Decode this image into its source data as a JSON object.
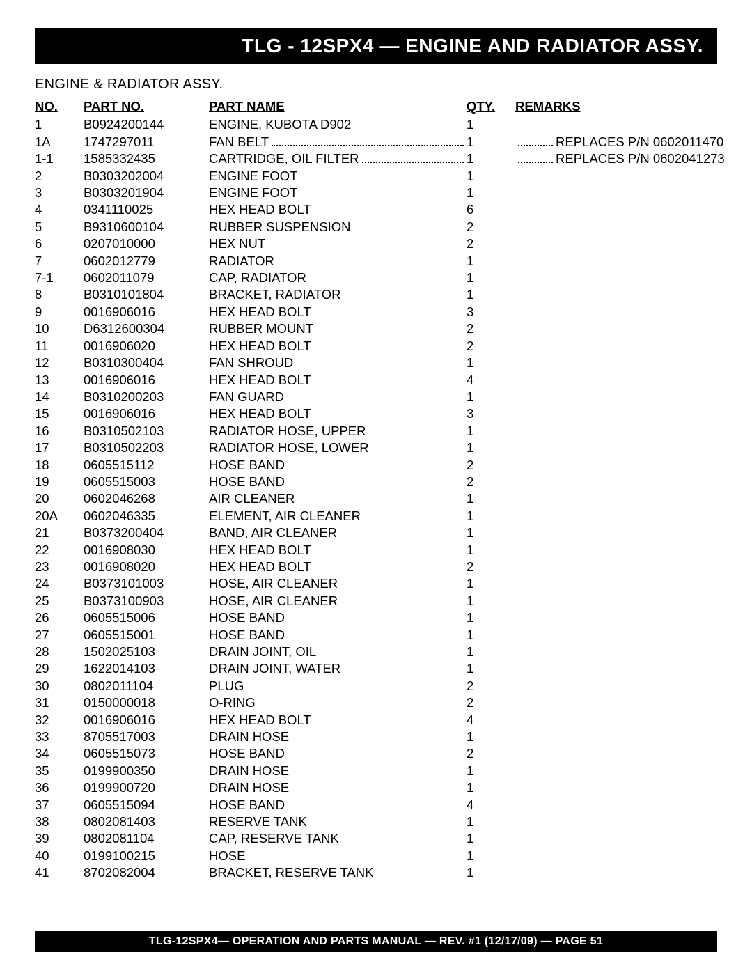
{
  "title": "TLG - 12SPX4 — ENGINE AND RADIATOR ASSY.",
  "subtitle": "ENGINE & RADIATOR ASSY.",
  "columns": {
    "no": "NO.",
    "part_no": "PART NO.",
    "part_name": "PART NAME",
    "qty": "QTY.",
    "remarks": "REMARKS"
  },
  "rows": [
    {
      "no": "1",
      "pn": "B0924200144",
      "name": "ENGINE, KUBOTA D902",
      "qty": "1",
      "rem": "",
      "leader": false
    },
    {
      "no": "1A",
      "pn": "1747297011",
      "name": "FAN BELT",
      "qty": "1",
      "rem": "REPLACES P/N 0602011470",
      "leader": true
    },
    {
      "no": "1-1",
      "pn": "1585332435",
      "name": "CARTRIDGE, OIL FILTER",
      "qty": "1",
      "rem": "REPLACES P/N 0602041273",
      "leader": true
    },
    {
      "no": "2",
      "pn": "B0303202004",
      "name": "ENGINE FOOT",
      "qty": "1",
      "rem": "",
      "leader": false
    },
    {
      "no": "3",
      "pn": "B0303201904",
      "name": "ENGINE FOOT",
      "qty": "1",
      "rem": "",
      "leader": false
    },
    {
      "no": "4",
      "pn": "0341110025",
      "name": "HEX HEAD BOLT",
      "qty": "6",
      "rem": "",
      "leader": false
    },
    {
      "no": "5",
      "pn": "B9310600104",
      "name": "RUBBER SUSPENSION",
      "qty": "2",
      "rem": "",
      "leader": false
    },
    {
      "no": "6",
      "pn": "0207010000",
      "name": "HEX NUT",
      "qty": "2",
      "rem": "",
      "leader": false
    },
    {
      "no": "7",
      "pn": "0602012779",
      "name": "RADIATOR",
      "qty": "1",
      "rem": "",
      "leader": false
    },
    {
      "no": "7-1",
      "pn": "0602011079",
      "name": "CAP, RADIATOR",
      "qty": "1",
      "rem": "",
      "leader": false
    },
    {
      "no": "8",
      "pn": "B0310101804",
      "name": "BRACKET, RADIATOR",
      "qty": "1",
      "rem": "",
      "leader": false
    },
    {
      "no": "9",
      "pn": "0016906016",
      "name": "HEX HEAD BOLT",
      "qty": "3",
      "rem": "",
      "leader": false
    },
    {
      "no": "10",
      "pn": "D6312600304",
      "name": "RUBBER MOUNT",
      "qty": "2",
      "rem": "",
      "leader": false
    },
    {
      "no": "11",
      "pn": "0016906020",
      "name": "HEX HEAD BOLT",
      "qty": "2",
      "rem": "",
      "leader": false
    },
    {
      "no": "12",
      "pn": "B0310300404",
      "name": "FAN SHROUD",
      "qty": "1",
      "rem": "",
      "leader": false
    },
    {
      "no": "13",
      "pn": "0016906016",
      "name": "HEX HEAD BOLT",
      "qty": "4",
      "rem": "",
      "leader": false
    },
    {
      "no": "14",
      "pn": "B0310200203",
      "name": "FAN GUARD",
      "qty": "1",
      "rem": "",
      "leader": false
    },
    {
      "no": "15",
      "pn": "0016906016",
      "name": "HEX HEAD BOLT",
      "qty": "3",
      "rem": "",
      "leader": false
    },
    {
      "no": "16",
      "pn": "B0310502103",
      "name": "RADIATOR HOSE, UPPER",
      "qty": "1",
      "rem": "",
      "leader": false
    },
    {
      "no": "17",
      "pn": "B0310502203",
      "name": "RADIATOR HOSE, LOWER",
      "qty": "1",
      "rem": "",
      "leader": false
    },
    {
      "no": "18",
      "pn": "0605515112",
      "name": "HOSE BAND",
      "qty": "2",
      "rem": "",
      "leader": false
    },
    {
      "no": "19",
      "pn": "0605515003",
      "name": "HOSE BAND",
      "qty": "2",
      "rem": "",
      "leader": false
    },
    {
      "no": "20",
      "pn": "0602046268",
      "name": "AIR CLEANER",
      "qty": "1",
      "rem": "",
      "leader": false
    },
    {
      "no": "20A",
      "pn": "0602046335",
      "name": "ELEMENT, AIR CLEANER",
      "qty": "1",
      "rem": "",
      "leader": false
    },
    {
      "no": "21",
      "pn": "B0373200404",
      "name": "BAND, AIR CLEANER",
      "qty": "1",
      "rem": "",
      "leader": false
    },
    {
      "no": "22",
      "pn": "0016908030",
      "name": "HEX HEAD BOLT",
      "qty": "1",
      "rem": "",
      "leader": false
    },
    {
      "no": "23",
      "pn": "0016908020",
      "name": "HEX HEAD BOLT",
      "qty": "2",
      "rem": "",
      "leader": false
    },
    {
      "no": "24",
      "pn": "B0373101003",
      "name": "HOSE, AIR CLEANER",
      "qty": "1",
      "rem": "",
      "leader": false
    },
    {
      "no": "25",
      "pn": "B0373100903",
      "name": "HOSE, AIR CLEANER",
      "qty": "1",
      "rem": "",
      "leader": false
    },
    {
      "no": "26",
      "pn": "0605515006",
      "name": "HOSE BAND",
      "qty": "1",
      "rem": "",
      "leader": false
    },
    {
      "no": "27",
      "pn": "0605515001",
      "name": "HOSE BAND",
      "qty": "1",
      "rem": "",
      "leader": false
    },
    {
      "no": "28",
      "pn": "1502025103",
      "name": "DRAIN JOINT, OIL",
      "qty": "1",
      "rem": "",
      "leader": false
    },
    {
      "no": "29",
      "pn": "1622014103",
      "name": "DRAIN JOINT, WATER",
      "qty": "1",
      "rem": "",
      "leader": false
    },
    {
      "no": "30",
      "pn": "0802011104",
      "name": "PLUG",
      "qty": "2",
      "rem": "",
      "leader": false
    },
    {
      "no": "31",
      "pn": "0150000018",
      "name": "O-RING",
      "qty": "2",
      "rem": "",
      "leader": false
    },
    {
      "no": "32",
      "pn": "0016906016",
      "name": "HEX HEAD BOLT",
      "qty": "4",
      "rem": "",
      "leader": false
    },
    {
      "no": "33",
      "pn": "8705517003",
      "name": "DRAIN HOSE",
      "qty": "1",
      "rem": "",
      "leader": false
    },
    {
      "no": "34",
      "pn": "0605515073",
      "name": "HOSE BAND",
      "qty": "2",
      "rem": "",
      "leader": false
    },
    {
      "no": "35",
      "pn": "0199900350",
      "name": "DRAIN HOSE",
      "qty": "1",
      "rem": "",
      "leader": false
    },
    {
      "no": "36",
      "pn": "0199900720",
      "name": "DRAIN HOSE",
      "qty": "1",
      "rem": "",
      "leader": false
    },
    {
      "no": "37",
      "pn": "0605515094",
      "name": "HOSE BAND",
      "qty": "4",
      "rem": "",
      "leader": false
    },
    {
      "no": "38",
      "pn": "0802081403",
      "name": "RESERVE TANK",
      "qty": "1",
      "rem": "",
      "leader": false
    },
    {
      "no": "39",
      "pn": "0802081104",
      "name": "CAP, RESERVE TANK",
      "qty": "1",
      "rem": "",
      "leader": false
    },
    {
      "no": "40",
      "pn": "0199100215",
      "name": "HOSE",
      "qty": "1",
      "rem": "",
      "leader": false
    },
    {
      "no": "41",
      "pn": "8702082004",
      "name": "BRACKET, RESERVE TANK",
      "qty": "1",
      "rem": "",
      "leader": false
    }
  ],
  "footer": "TLG-12SPX4— OPERATION AND PARTS MANUAL — REV. #1 (12/17/09) — PAGE 51"
}
